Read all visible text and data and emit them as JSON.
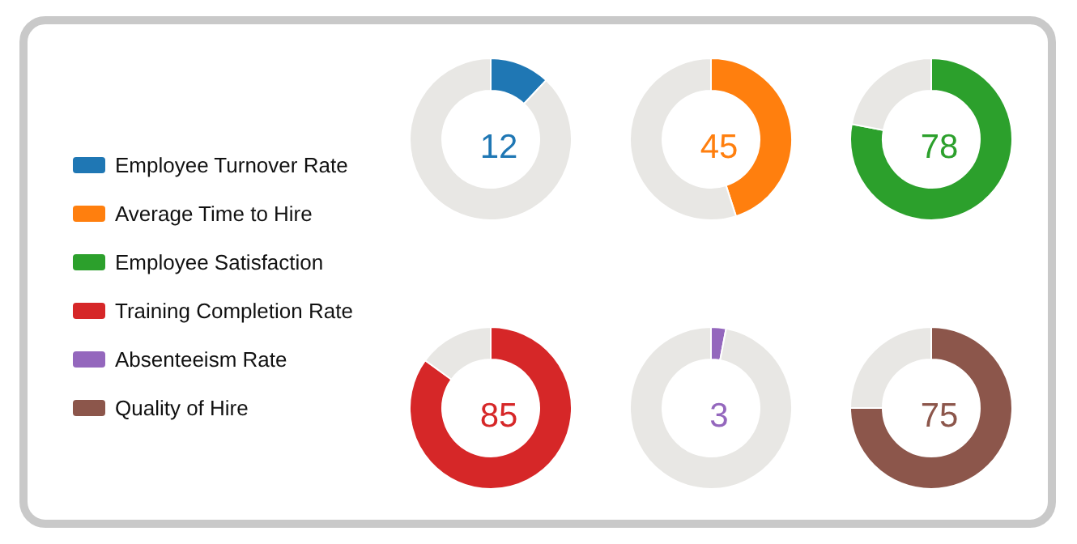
{
  "chart_data": [
    {
      "type": "donut",
      "categories": [
        "Employee Turnover Rate",
        null
      ],
      "values": [
        12,
        88
      ],
      "colors": [
        "#1f77b4",
        "#e8e7e4"
      ],
      "annotations": [
        "12"
      ],
      "legend": "left"
    },
    {
      "type": "donut",
      "categories": [
        "Average Time to Hire",
        null
      ],
      "values": [
        45,
        55
      ],
      "colors": [
        "#ff7f0e",
        "#e8e7e4"
      ],
      "annotations": [
        "45"
      ],
      "legend": "left"
    },
    {
      "type": "donut",
      "categories": [
        "Employee Satisfaction",
        null
      ],
      "values": [
        78,
        22
      ],
      "colors": [
        "#2ca02c",
        "#e8e7e4"
      ],
      "annotations": [
        "78"
      ],
      "legend": "left"
    },
    {
      "type": "donut",
      "categories": [
        "Training Completion Rate",
        null
      ],
      "values": [
        85,
        15
      ],
      "colors": [
        "#d62728",
        "#e8e7e4"
      ],
      "annotations": [
        "85"
      ],
      "legend": "left"
    },
    {
      "type": "donut",
      "categories": [
        "Absenteeism Rate",
        null
      ],
      "values": [
        3,
        97
      ],
      "colors": [
        "#9467bd",
        "#e8e7e4"
      ],
      "annotations": [
        "3"
      ],
      "legend": "left"
    },
    {
      "type": "donut",
      "categories": [
        "Quality of Hire",
        null
      ],
      "values": [
        75,
        25
      ],
      "colors": [
        "#8c564b",
        "#e8e7e4"
      ],
      "annotations": [
        "75"
      ],
      "legend": "left"
    }
  ]
}
